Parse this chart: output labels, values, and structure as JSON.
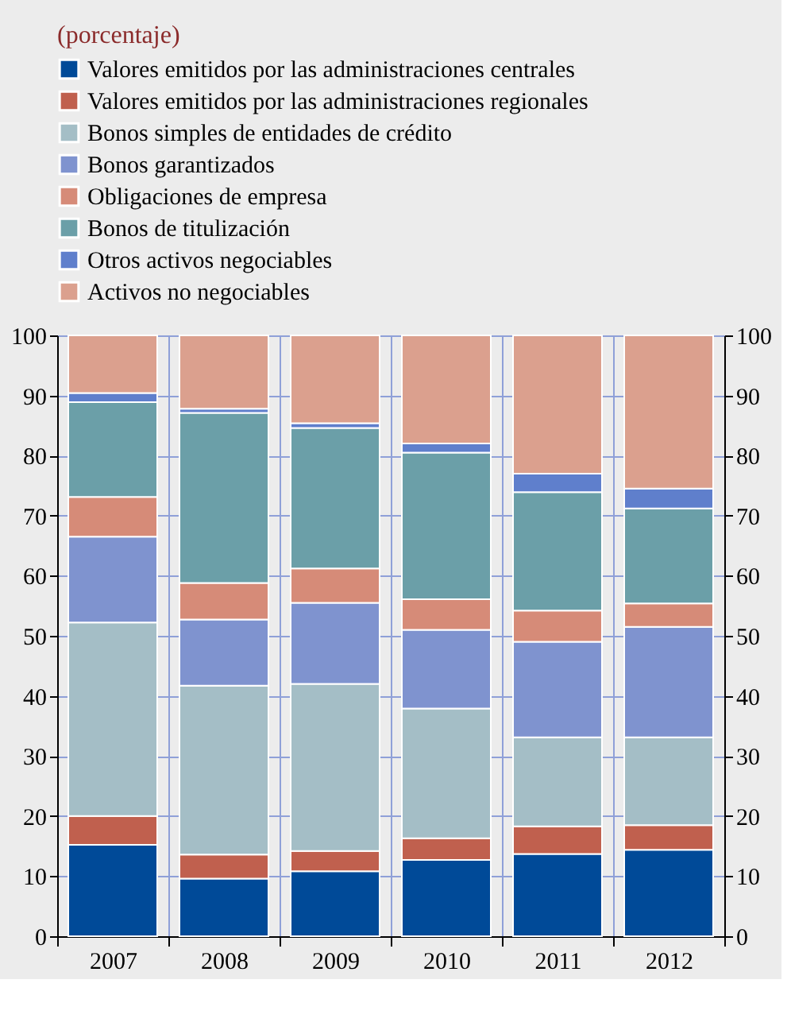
{
  "chart_data": {
    "type": "bar",
    "stacked": true,
    "title": "(porcentaje)",
    "categories": [
      "2007",
      "2008",
      "2009",
      "2010",
      "2011",
      "2012"
    ],
    "series": [
      {
        "name": "Valores emitidos por las administraciones centrales",
        "color": "#004a98",
        "values": [
          15.2,
          9.6,
          10.8,
          12.7,
          13.7,
          14.4
        ]
      },
      {
        "name": "Valores emitidos por las administraciones regionales",
        "color": "#c0604e",
        "values": [
          4.8,
          4.0,
          3.4,
          3.6,
          4.6,
          4.1
        ]
      },
      {
        "name": "Bonos simples de entidades de crédito",
        "color": "#a4bec6",
        "values": [
          32.2,
          28.1,
          27.8,
          21.6,
          14.8,
          14.6
        ]
      },
      {
        "name": "Bonos garantizados",
        "color": "#7f93cf",
        "values": [
          14.3,
          11.0,
          13.5,
          13.1,
          15.9,
          18.4
        ]
      },
      {
        "name": "Obligaciones de empresa",
        "color": "#d68b78",
        "values": [
          6.6,
          6.1,
          5.7,
          5.1,
          5.2,
          3.9
        ]
      },
      {
        "name": "Bonos de titulización",
        "color": "#6b9fa8",
        "values": [
          15.8,
          28.3,
          23.4,
          24.4,
          19.7,
          15.8
        ]
      },
      {
        "name": "Otros activos negociables",
        "color": "#5f7fcc",
        "values": [
          1.5,
          0.7,
          0.8,
          1.5,
          3.1,
          3.3
        ]
      },
      {
        "name": "Activos no negociables",
        "color": "#dba08e",
        "values": [
          9.6,
          12.2,
          14.6,
          18.0,
          23.0,
          25.5
        ]
      }
    ],
    "ylim": [
      0,
      100
    ],
    "yticks": [
      0,
      10,
      20,
      30,
      40,
      50,
      60,
      70,
      80,
      90,
      100
    ],
    "y2lim": [
      0,
      100
    ],
    "y2ticks": [
      0,
      10,
      20,
      30,
      40,
      50,
      60,
      70,
      80,
      90,
      100
    ],
    "grid": true,
    "legend": "top"
  }
}
